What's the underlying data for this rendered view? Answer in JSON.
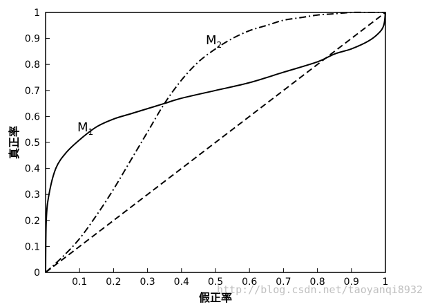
{
  "chart_data": {
    "type": "line",
    "xlabel": "假正率",
    "ylabel": "真正率",
    "xlim": [
      0,
      1
    ],
    "ylim": [
      0,
      1
    ],
    "grid": false,
    "x_ticks": [
      "0.1",
      "0.2",
      "0.3",
      "0.4",
      "0.5",
      "0.6",
      "0.7",
      "0.8",
      "0.9",
      "1"
    ],
    "y_ticks": [
      "0",
      "0.1",
      "0.2",
      "0.3",
      "0.4",
      "0.5",
      "0.6",
      "0.7",
      "0.8",
      "0.9",
      "1"
    ],
    "series": [
      {
        "name": "M1",
        "style": "solid",
        "x": [
          0,
          0.002,
          0.01,
          0.03,
          0.06,
          0.1,
          0.15,
          0.2,
          0.25,
          0.3,
          0.35,
          0.4,
          0.5,
          0.6,
          0.7,
          0.8,
          0.85,
          0.9,
          0.95,
          0.98,
          0.995,
          1.0
        ],
        "y": [
          0,
          0.2,
          0.3,
          0.4,
          0.46,
          0.51,
          0.56,
          0.59,
          0.61,
          0.63,
          0.65,
          0.67,
          0.7,
          0.73,
          0.77,
          0.81,
          0.84,
          0.86,
          0.89,
          0.92,
          0.95,
          1.0
        ]
      },
      {
        "name": "M2",
        "style": "dash-dot",
        "x": [
          0,
          0.05,
          0.1,
          0.15,
          0.2,
          0.25,
          0.3,
          0.35,
          0.4,
          0.45,
          0.5,
          0.55,
          0.6,
          0.65,
          0.7,
          0.75,
          0.8,
          0.85,
          0.9,
          0.95,
          1.0
        ],
        "y": [
          0,
          0.06,
          0.13,
          0.22,
          0.32,
          0.43,
          0.54,
          0.65,
          0.74,
          0.81,
          0.86,
          0.9,
          0.93,
          0.95,
          0.97,
          0.98,
          0.99,
          0.995,
          1.0,
          1.0,
          1.0
        ]
      },
      {
        "style": "dashed",
        "x": [
          0,
          1
        ],
        "y": [
          0,
          1
        ]
      }
    ],
    "annotations": [
      {
        "text": "M",
        "sub": "1",
        "series": "M1"
      },
      {
        "text": "M",
        "sub": "2",
        "series": "M2"
      }
    ]
  },
  "watermark": "http://blog.csdn.net/taoyanqi8932"
}
